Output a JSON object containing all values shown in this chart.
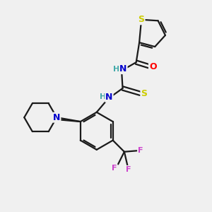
{
  "bg_color": "#f0f0f0",
  "bond_color": "#1a1a1a",
  "atom_colors": {
    "S": "#cccc00",
    "N": "#0000cc",
    "O": "#ff0000",
    "F": "#cc44cc",
    "H": "#44aaaa"
  },
  "figsize": [
    3.0,
    3.0
  ],
  "dpi": 100
}
